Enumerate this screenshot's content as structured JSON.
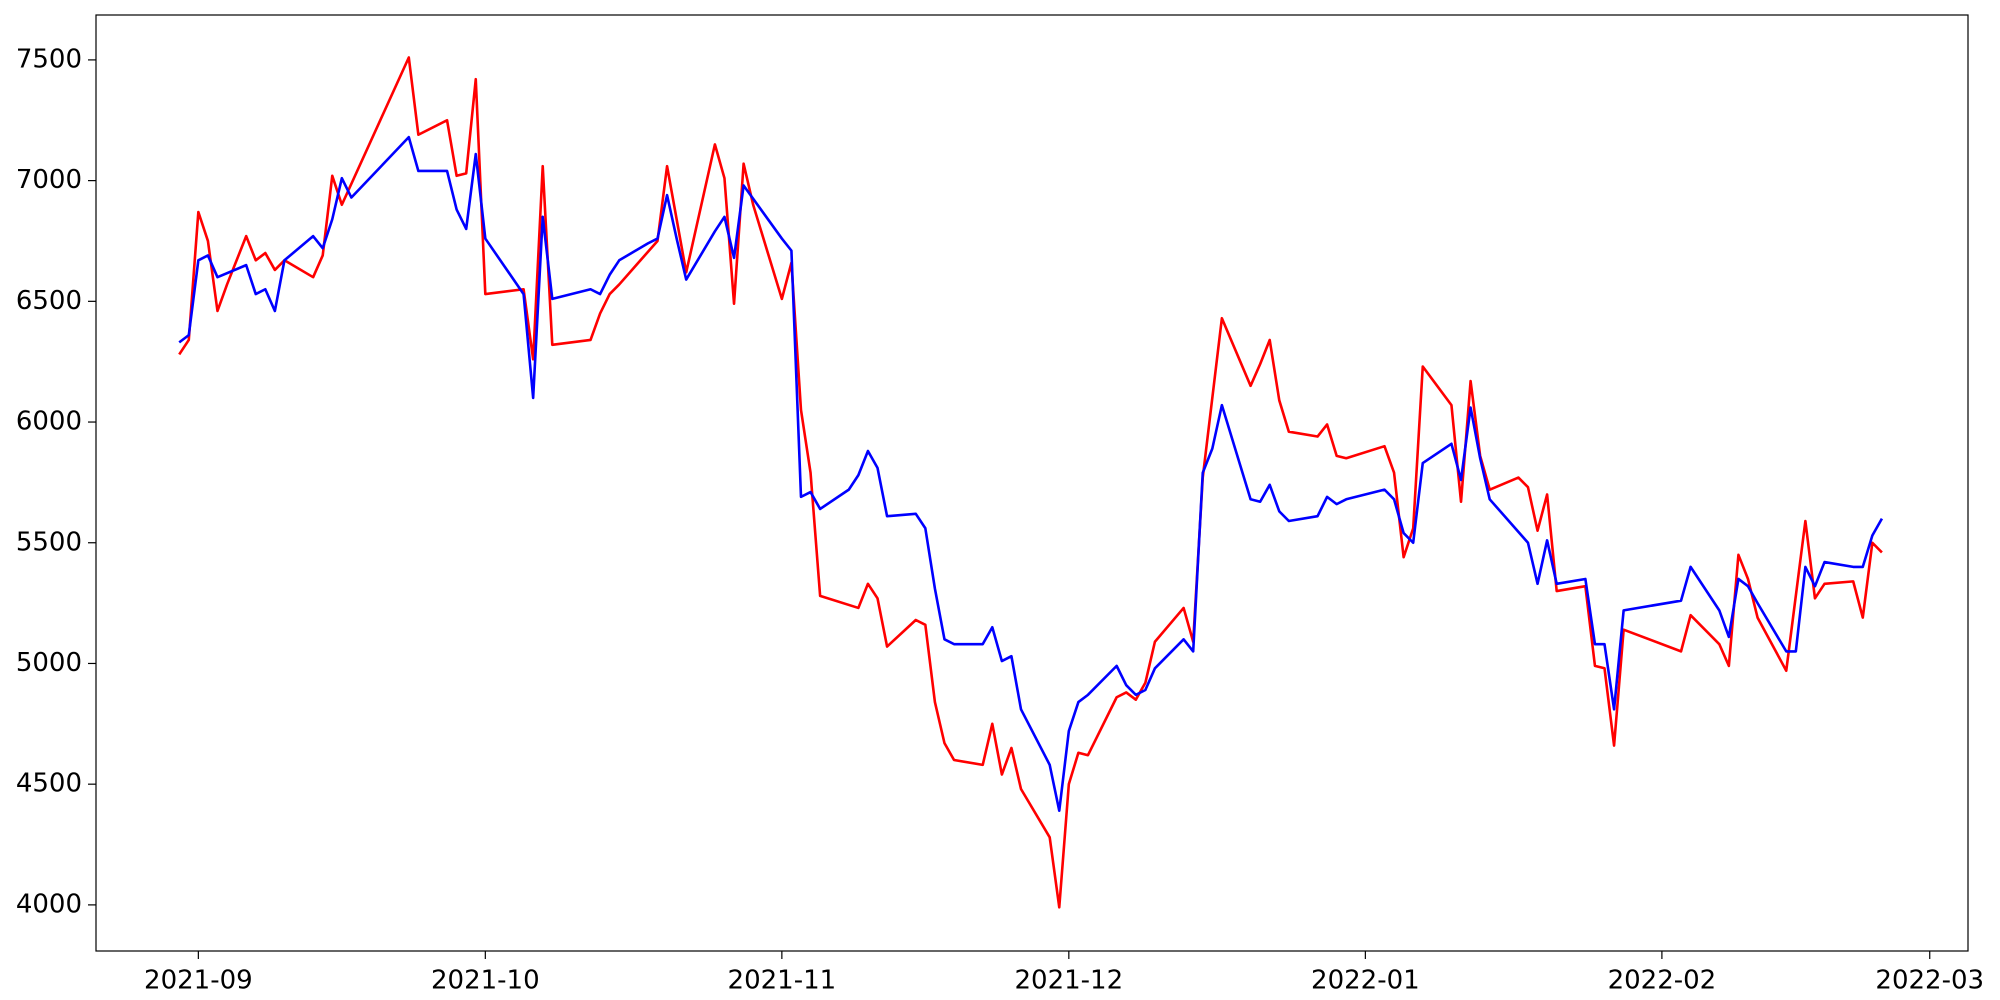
{
  "chart_data": {
    "type": "line",
    "xlim": [
      -10.7,
      185.0
    ],
    "xticks": [
      {
        "value": 0,
        "label": "2021-09"
      },
      {
        "value": 30,
        "label": "2021-10"
      },
      {
        "value": 61,
        "label": "2021-11"
      },
      {
        "value": 91,
        "label": "2021-12"
      },
      {
        "value": 122,
        "label": "2022-01"
      },
      {
        "value": 153,
        "label": "2022-02"
      },
      {
        "value": 181,
        "label": "2022-03"
      }
    ],
    "ylim": [
      3809,
      7686
    ],
    "yticks": [
      4000,
      4500,
      5000,
      5500,
      6000,
      6500,
      7000,
      7500
    ],
    "grid": false,
    "series": [
      {
        "color": "#ff0000",
        "x": [
          -2,
          -1,
          0,
          1,
          2,
          3,
          5,
          6,
          7,
          8,
          9,
          12,
          13,
          14,
          15,
          22,
          23,
          26,
          27,
          28,
          29,
          30,
          34,
          35,
          36,
          37,
          41,
          42,
          43,
          44,
          48,
          49,
          51,
          54,
          55,
          56,
          57,
          58,
          61,
          62,
          63,
          64,
          65,
          69,
          70,
          71,
          72,
          75,
          76,
          77,
          78,
          79,
          82,
          83,
          84,
          85,
          86,
          89,
          90,
          91,
          92,
          93,
          96,
          97,
          98,
          99,
          100,
          103,
          104,
          105,
          107,
          110,
          111,
          112,
          113,
          114,
          117,
          118,
          119,
          120,
          124,
          125,
          126,
          127,
          128,
          131,
          132,
          133,
          134,
          135,
          138,
          139,
          140,
          141,
          142,
          145,
          146,
          147,
          148,
          149,
          155,
          156,
          159,
          160,
          161,
          162,
          163,
          166,
          168,
          169,
          170,
          173,
          174,
          175,
          176
        ],
        "values": [
          6280,
          6340,
          6870,
          6750,
          6460,
          6570,
          6770,
          6670,
          6700,
          6630,
          6670,
          6600,
          6690,
          7020,
          6900,
          7510,
          7190,
          7250,
          7020,
          7030,
          7420,
          6530,
          6550,
          6260,
          7060,
          6320,
          6340,
          6450,
          6530,
          6570,
          6750,
          7060,
          6620,
          7150,
          7010,
          6490,
          7070,
          6900,
          6510,
          6660,
          6050,
          5790,
          5280,
          5230,
          5330,
          5270,
          5070,
          5180,
          5160,
          4840,
          4670,
          4600,
          4580,
          4750,
          4540,
          4650,
          4480,
          4280,
          3990,
          4500,
          4630,
          4620,
          4860,
          4880,
          4850,
          4920,
          5090,
          5230,
          5090,
          5770,
          6430,
          6150,
          6240,
          6340,
          6090,
          5960,
          5940,
          5990,
          5860,
          5850,
          5900,
          5790,
          5440,
          5560,
          6230,
          6070,
          5670,
          6170,
          5860,
          5720,
          5770,
          5730,
          5550,
          5700,
          5300,
          5320,
          4990,
          4980,
          4660,
          5140,
          5050,
          5200,
          5080,
          4990,
          5450,
          5350,
          5190,
          4970,
          5590,
          5270,
          5330,
          5340,
          5190,
          5500,
          5460
        ]
      },
      {
        "color": "#0000ff",
        "x": [
          -2,
          -1,
          0,
          1,
          2,
          5,
          6,
          7,
          8,
          9,
          12,
          13,
          14,
          15,
          16,
          22,
          23,
          26,
          27,
          28,
          29,
          30,
          34,
          35,
          36,
          37,
          41,
          42,
          43,
          44,
          47,
          48,
          49,
          50,
          51,
          54,
          55,
          56,
          57,
          61,
          62,
          63,
          64,
          65,
          68,
          69,
          70,
          71,
          72,
          75,
          76,
          77,
          78,
          79,
          82,
          83,
          84,
          85,
          86,
          89,
          90,
          91,
          92,
          93,
          96,
          97,
          98,
          99,
          100,
          103,
          104,
          105,
          106,
          107,
          110,
          111,
          112,
          113,
          114,
          117,
          118,
          119,
          120,
          124,
          125,
          126,
          127,
          128,
          131,
          132,
          133,
          134,
          135,
          139,
          140,
          141,
          142,
          145,
          146,
          147,
          148,
          149,
          155,
          156,
          159,
          160,
          161,
          162,
          163,
          166,
          167,
          168,
          169,
          170,
          173,
          174,
          175,
          176
        ],
        "values": [
          6330,
          6360,
          6670,
          6690,
          6600,
          6650,
          6530,
          6550,
          6460,
          6670,
          6770,
          6720,
          6840,
          7010,
          6930,
          7180,
          7040,
          7040,
          6880,
          6800,
          7110,
          6760,
          6530,
          6100,
          6850,
          6510,
          6550,
          6530,
          6610,
          6670,
          6740,
          6760,
          6940,
          6760,
          6590,
          6790,
          6850,
          6680,
          6980,
          6760,
          6710,
          5690,
          5710,
          5640,
          5720,
          5780,
          5880,
          5810,
          5610,
          5620,
          5560,
          5310,
          5100,
          5080,
          5080,
          5150,
          5010,
          5030,
          4810,
          4580,
          4390,
          4720,
          4840,
          4870,
          4990,
          4910,
          4870,
          4890,
          4980,
          5100,
          5050,
          5790,
          5890,
          6070,
          5680,
          5670,
          5740,
          5630,
          5590,
          5610,
          5690,
          5660,
          5680,
          5720,
          5680,
          5540,
          5500,
          5830,
          5910,
          5760,
          6060,
          5850,
          5680,
          5500,
          5330,
          5510,
          5330,
          5350,
          5080,
          5080,
          4810,
          5220,
          5260,
          5400,
          5220,
          5110,
          5350,
          5320,
          5250,
          5050,
          5050,
          5400,
          5320,
          5420,
          5400,
          5400,
          5530,
          5600
        ]
      }
    ]
  }
}
